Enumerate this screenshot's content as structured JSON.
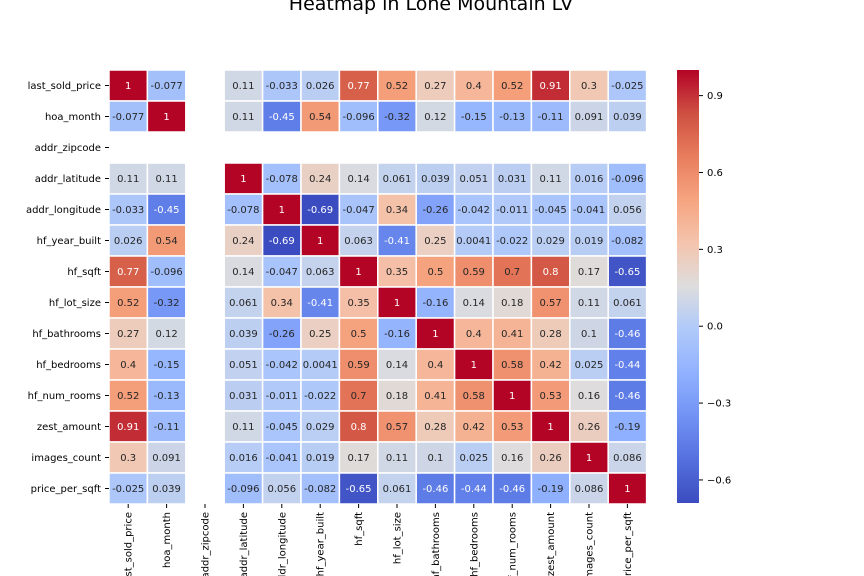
{
  "chart_data": {
    "type": "heatmap",
    "title": "Heatmap in Lone Mountain LV",
    "labels": [
      "last_sold_price",
      "hoa_month",
      "addr_zipcode",
      "addr_latitude",
      "addr_longitude",
      "hf_year_built",
      "hf_sqft",
      "hf_lot_size",
      "hf_bathrooms",
      "hf_bedrooms",
      "hf_num_rooms",
      "zest_amount",
      "images_count",
      "price_per_sqft"
    ],
    "matrix": [
      [
        "1",
        "-0.077",
        null,
        "0.11",
        "-0.033",
        "0.026",
        "0.77",
        "0.52",
        "0.27",
        "0.4",
        "0.52",
        "0.91",
        "0.3",
        "-0.025"
      ],
      [
        "-0.077",
        "1",
        null,
        "0.11",
        "-0.45",
        "0.54",
        "-0.096",
        "-0.32",
        "0.12",
        "-0.15",
        "-0.13",
        "-0.11",
        "0.091",
        "0.039"
      ],
      [
        null,
        null,
        null,
        null,
        null,
        null,
        null,
        null,
        null,
        null,
        null,
        null,
        null,
        null
      ],
      [
        "0.11",
        "0.11",
        null,
        "1",
        "-0.078",
        "0.24",
        "0.14",
        "0.061",
        "0.039",
        "0.051",
        "0.031",
        "0.11",
        "0.016",
        "-0.096"
      ],
      [
        "-0.033",
        "-0.45",
        null,
        "-0.078",
        "1",
        "-0.69",
        "-0.047",
        "0.34",
        "-0.26",
        "-0.042",
        "-0.011",
        "-0.045",
        "-0.041",
        "0.056"
      ],
      [
        "0.026",
        "0.54",
        null,
        "0.24",
        "-0.69",
        "1",
        "0.063",
        "-0.41",
        "0.25",
        "0.0041",
        "-0.022",
        "0.029",
        "0.019",
        "-0.082"
      ],
      [
        "0.77",
        "-0.096",
        null,
        "0.14",
        "-0.047",
        "0.063",
        "1",
        "0.35",
        "0.5",
        "0.59",
        "0.7",
        "0.8",
        "0.17",
        "-0.65"
      ],
      [
        "0.52",
        "-0.32",
        null,
        "0.061",
        "0.34",
        "-0.41",
        "0.35",
        "1",
        "-0.16",
        "0.14",
        "0.18",
        "0.57",
        "0.11",
        "0.061"
      ],
      [
        "0.27",
        "0.12",
        null,
        "0.039",
        "-0.26",
        "0.25",
        "0.5",
        "-0.16",
        "1",
        "0.4",
        "0.41",
        "0.28",
        "0.1",
        "-0.46"
      ],
      [
        "0.4",
        "-0.15",
        null,
        "0.051",
        "-0.042",
        "0.0041",
        "0.59",
        "0.14",
        "0.4",
        "1",
        "0.58",
        "0.42",
        "0.025",
        "-0.44"
      ],
      [
        "0.52",
        "-0.13",
        null,
        "0.031",
        "-0.011",
        "-0.022",
        "0.7",
        "0.18",
        "0.41",
        "0.58",
        "1",
        "0.53",
        "0.16",
        "-0.46"
      ],
      [
        "0.91",
        "-0.11",
        null,
        "0.11",
        "-0.045",
        "0.029",
        "0.8",
        "0.57",
        "0.28",
        "0.42",
        "0.53",
        "1",
        "0.26",
        "-0.19"
      ],
      [
        "0.3",
        "0.091",
        null,
        "0.016",
        "-0.041",
        "0.019",
        "0.17",
        "0.11",
        "0.1",
        "0.025",
        "0.16",
        "0.26",
        "1",
        "0.086"
      ],
      [
        "-0.025",
        "0.039",
        null,
        "-0.096",
        "0.056",
        "-0.082",
        "-0.65",
        "0.061",
        "-0.46",
        "-0.44",
        "-0.46",
        "-0.19",
        "0.086",
        "1"
      ]
    ],
    "x_tick_labels": [
      "last_sold_price",
      "hoa_month",
      "addr_zipcode",
      "addr_latitude",
      "addr_longitude",
      "hf_year_built",
      "hf_sqft",
      "hf_lot_size",
      "hf_bathrooms",
      "hf_bedrooms",
      "hf_num_rooms",
      "zest_amount",
      "images_count",
      "price_per_sqft"
    ],
    "colormap": "coolwarm",
    "vmin": -0.69,
    "vmax": 1.0,
    "colorbar": {
      "ticks": [
        0.9,
        0.6,
        0.3,
        0.0,
        -0.3,
        -0.6
      ],
      "tick_labels": [
        "0.9",
        "0.6",
        "0.3",
        "0.0",
        "−0.3",
        "−0.6"
      ]
    },
    "grid_color": "#ffffff"
  }
}
